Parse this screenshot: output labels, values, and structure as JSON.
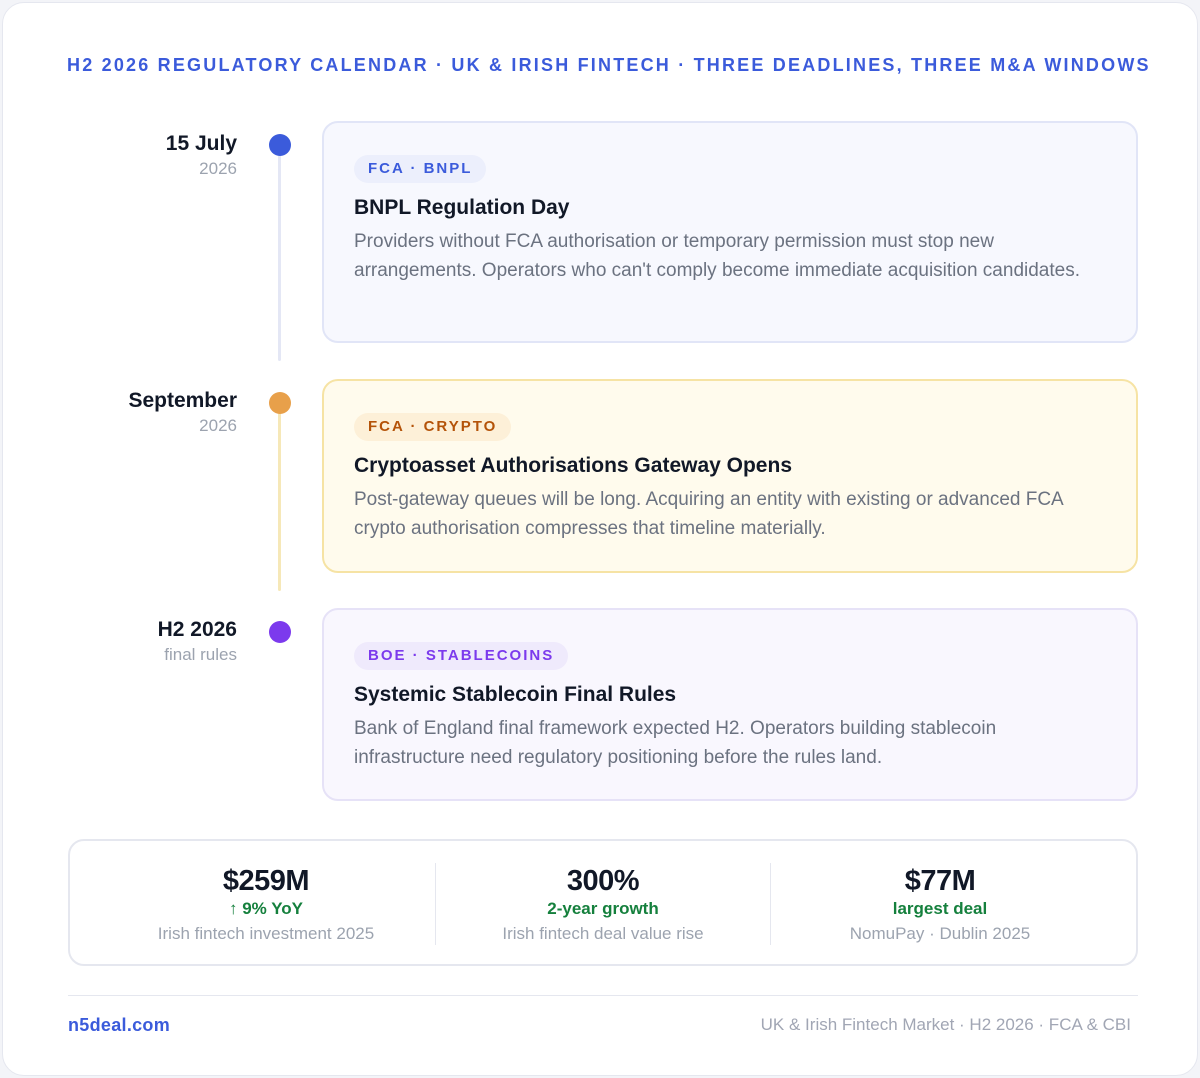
{
  "header": {
    "title": "H2 2026 REGULATORY CALENDAR · UK & IRISH FINTECH · THREE DEADLINES, THREE M&A WINDOWS"
  },
  "timeline": [
    {
      "date_main": "15 July",
      "date_sub": "2026",
      "dot_color": "#3b5bdb",
      "tag": "FCA · BNPL",
      "tag_color": "#3b5bdb",
      "tag_bg": "#eceffc",
      "title": "BNPL Regulation Day",
      "description": "Providers without FCA authorisation or temporary permission must stop new arrangements. Operators who can't comply become immediate acquisition candidates.",
      "card_bg": "#f7f8fe",
      "card_border": "#e1e5f7"
    },
    {
      "date_main": "September",
      "date_sub": "2026",
      "dot_color": "#e8a04a",
      "tag": "FCA · CRYPTO",
      "tag_color": "#b45309",
      "tag_bg": "#fdf0d8",
      "title": "Cryptoasset Authorisations Gateway Opens",
      "description": "Post-gateway queues will be long. Acquiring an entity with existing or advanced FCA crypto authorisation compresses that timeline materially.",
      "card_bg": "#fffbed",
      "card_border": "#f6e3a4"
    },
    {
      "date_main": "H2 2026",
      "date_sub": "final rules",
      "dot_color": "#7c3aed",
      "tag": "BOE · STABLECOINS",
      "tag_color": "#7c3aed",
      "tag_bg": "#efeafc",
      "title": "Systemic Stablecoin Final Rules",
      "description": "Bank of England final framework expected H2. Operators building stablecoin infrastructure need regulatory positioning before the rules land.",
      "card_bg": "#f9f7fe",
      "card_border": "#e6e2f7"
    }
  ],
  "stats": [
    {
      "value": "$259M",
      "accent": "↑ 9% YoY",
      "label": "Irish fintech investment 2025"
    },
    {
      "value": "300%",
      "accent": "2-year growth",
      "label": "Irish fintech deal value rise"
    },
    {
      "value": "$77M",
      "accent": "largest deal",
      "label": "NomuPay · Dublin 2025"
    }
  ],
  "footer": {
    "brand": "n5deal.com",
    "meta": "UK & Irish Fintech Market · H2 2026 · FCA & CBI"
  }
}
